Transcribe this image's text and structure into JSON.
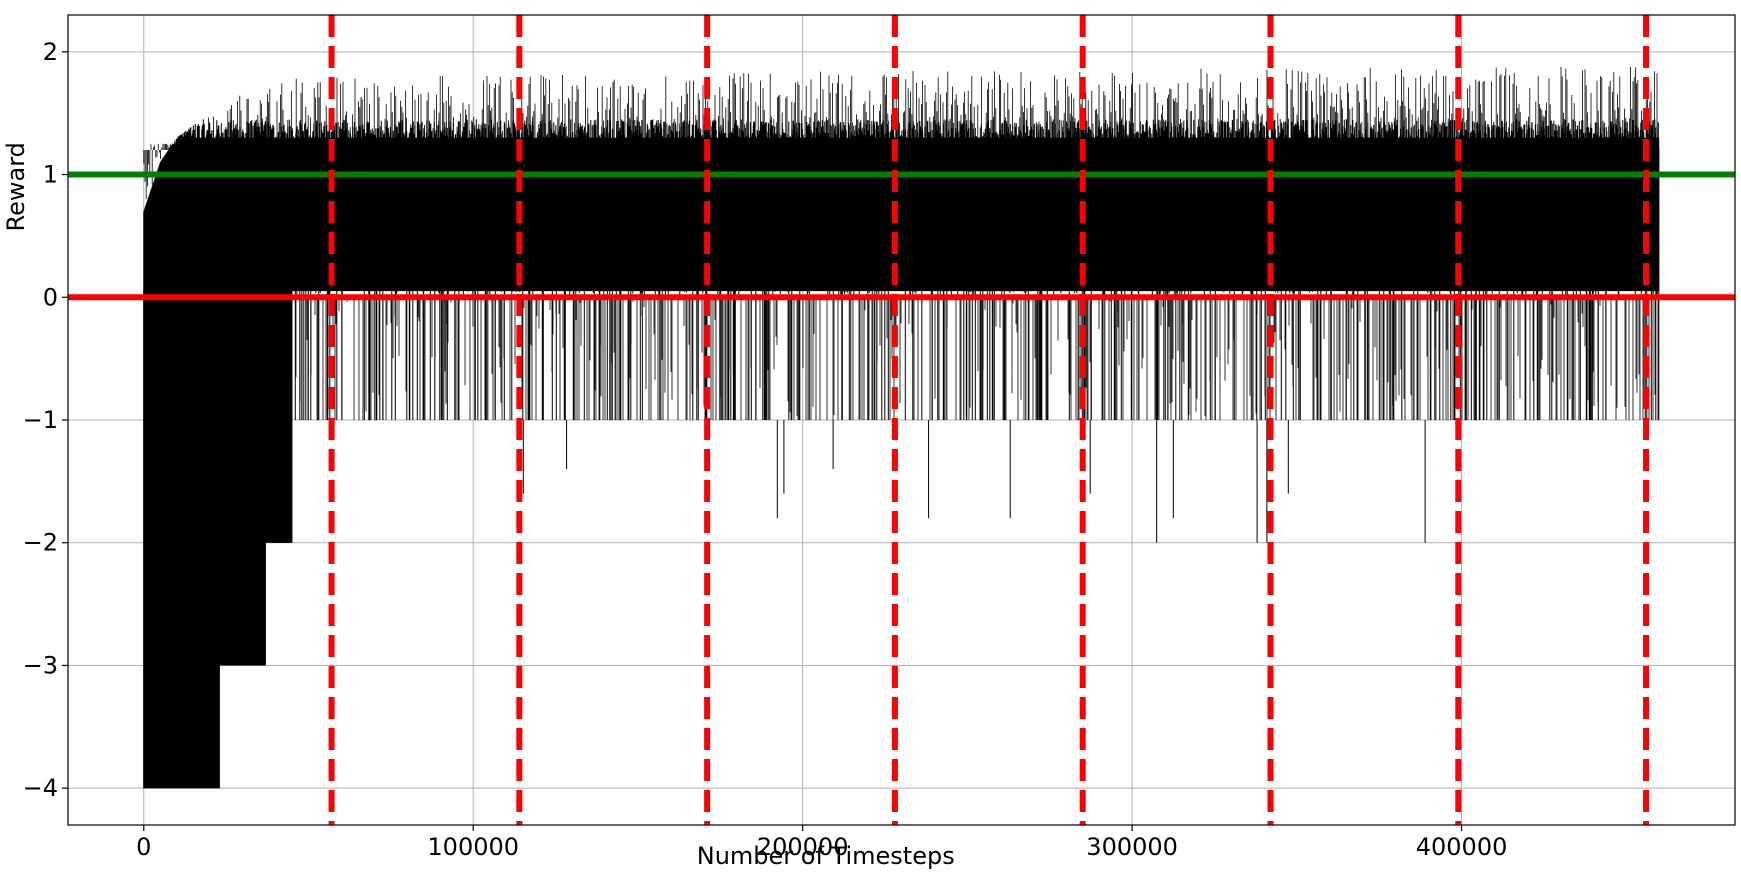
{
  "chart_data": {
    "type": "line",
    "title": "",
    "xlabel": "Number of Timesteps",
    "ylabel": "Reward",
    "xlim": [
      -23000,
      483000
    ],
    "ylim": [
      -4.3,
      2.3
    ],
    "xticks": [
      0,
      100000,
      200000,
      300000,
      400000
    ],
    "yticks": [
      -4,
      -3,
      -2,
      -1,
      0,
      1,
      2
    ],
    "xtick_labels": [
      "0",
      "100000",
      "200000",
      "300000",
      "400000"
    ],
    "ytick_labels": [
      "−4",
      "−3",
      "−2",
      "−1",
      "0",
      "1",
      "2"
    ],
    "grid": true,
    "reward_series": {
      "color": "#000000",
      "x_range": [
        0,
        460000
      ],
      "envelope": [
        {
          "x": 0,
          "low": -4,
          "high": 0.7
        },
        {
          "x": 5000,
          "low": -4,
          "high": 1.1
        },
        {
          "x": 10000,
          "low": -4,
          "high": 1.3
        },
        {
          "x": 20000,
          "low": -4,
          "high": 1.5
        },
        {
          "x": 23000,
          "low": -3,
          "high": 1.6
        },
        {
          "x": 36000,
          "low": -3,
          "high": 1.7
        },
        {
          "x": 37000,
          "low": -2,
          "high": 1.7
        },
        {
          "x": 44000,
          "low": -2,
          "high": 1.8
        },
        {
          "x": 45000,
          "low": -1,
          "high": 1.8
        },
        {
          "x": 460000,
          "low": -1,
          "high": 1.9
        }
      ],
      "typical_band": [
        0.9,
        1.45
      ],
      "rare_low_values": [
        -2,
        -1.8,
        -1.6,
        -1.4
      ]
    },
    "reference_lines": [
      {
        "orientation": "horizontal",
        "y": 1,
        "color": "#008000",
        "style": "solid"
      },
      {
        "orientation": "horizontal",
        "y": 0,
        "color": "#ff0000",
        "style": "solid"
      },
      {
        "orientation": "vertical",
        "x": 57000,
        "color": "#ff0000",
        "style": "dashed"
      },
      {
        "orientation": "vertical",
        "x": 114000,
        "color": "#ff0000",
        "style": "dashed"
      },
      {
        "orientation": "vertical",
        "x": 171000,
        "color": "#ff0000",
        "style": "dashed"
      },
      {
        "orientation": "vertical",
        "x": 228000,
        "color": "#ff0000",
        "style": "dashed"
      },
      {
        "orientation": "vertical",
        "x": 285000,
        "color": "#ff0000",
        "style": "dashed"
      },
      {
        "orientation": "vertical",
        "x": 342000,
        "color": "#ff0000",
        "style": "dashed"
      },
      {
        "orientation": "vertical",
        "x": 399000,
        "color": "#ff0000",
        "style": "dashed"
      },
      {
        "orientation": "vertical",
        "x": 456000,
        "color": "#ff0000",
        "style": "dashed"
      }
    ]
  }
}
